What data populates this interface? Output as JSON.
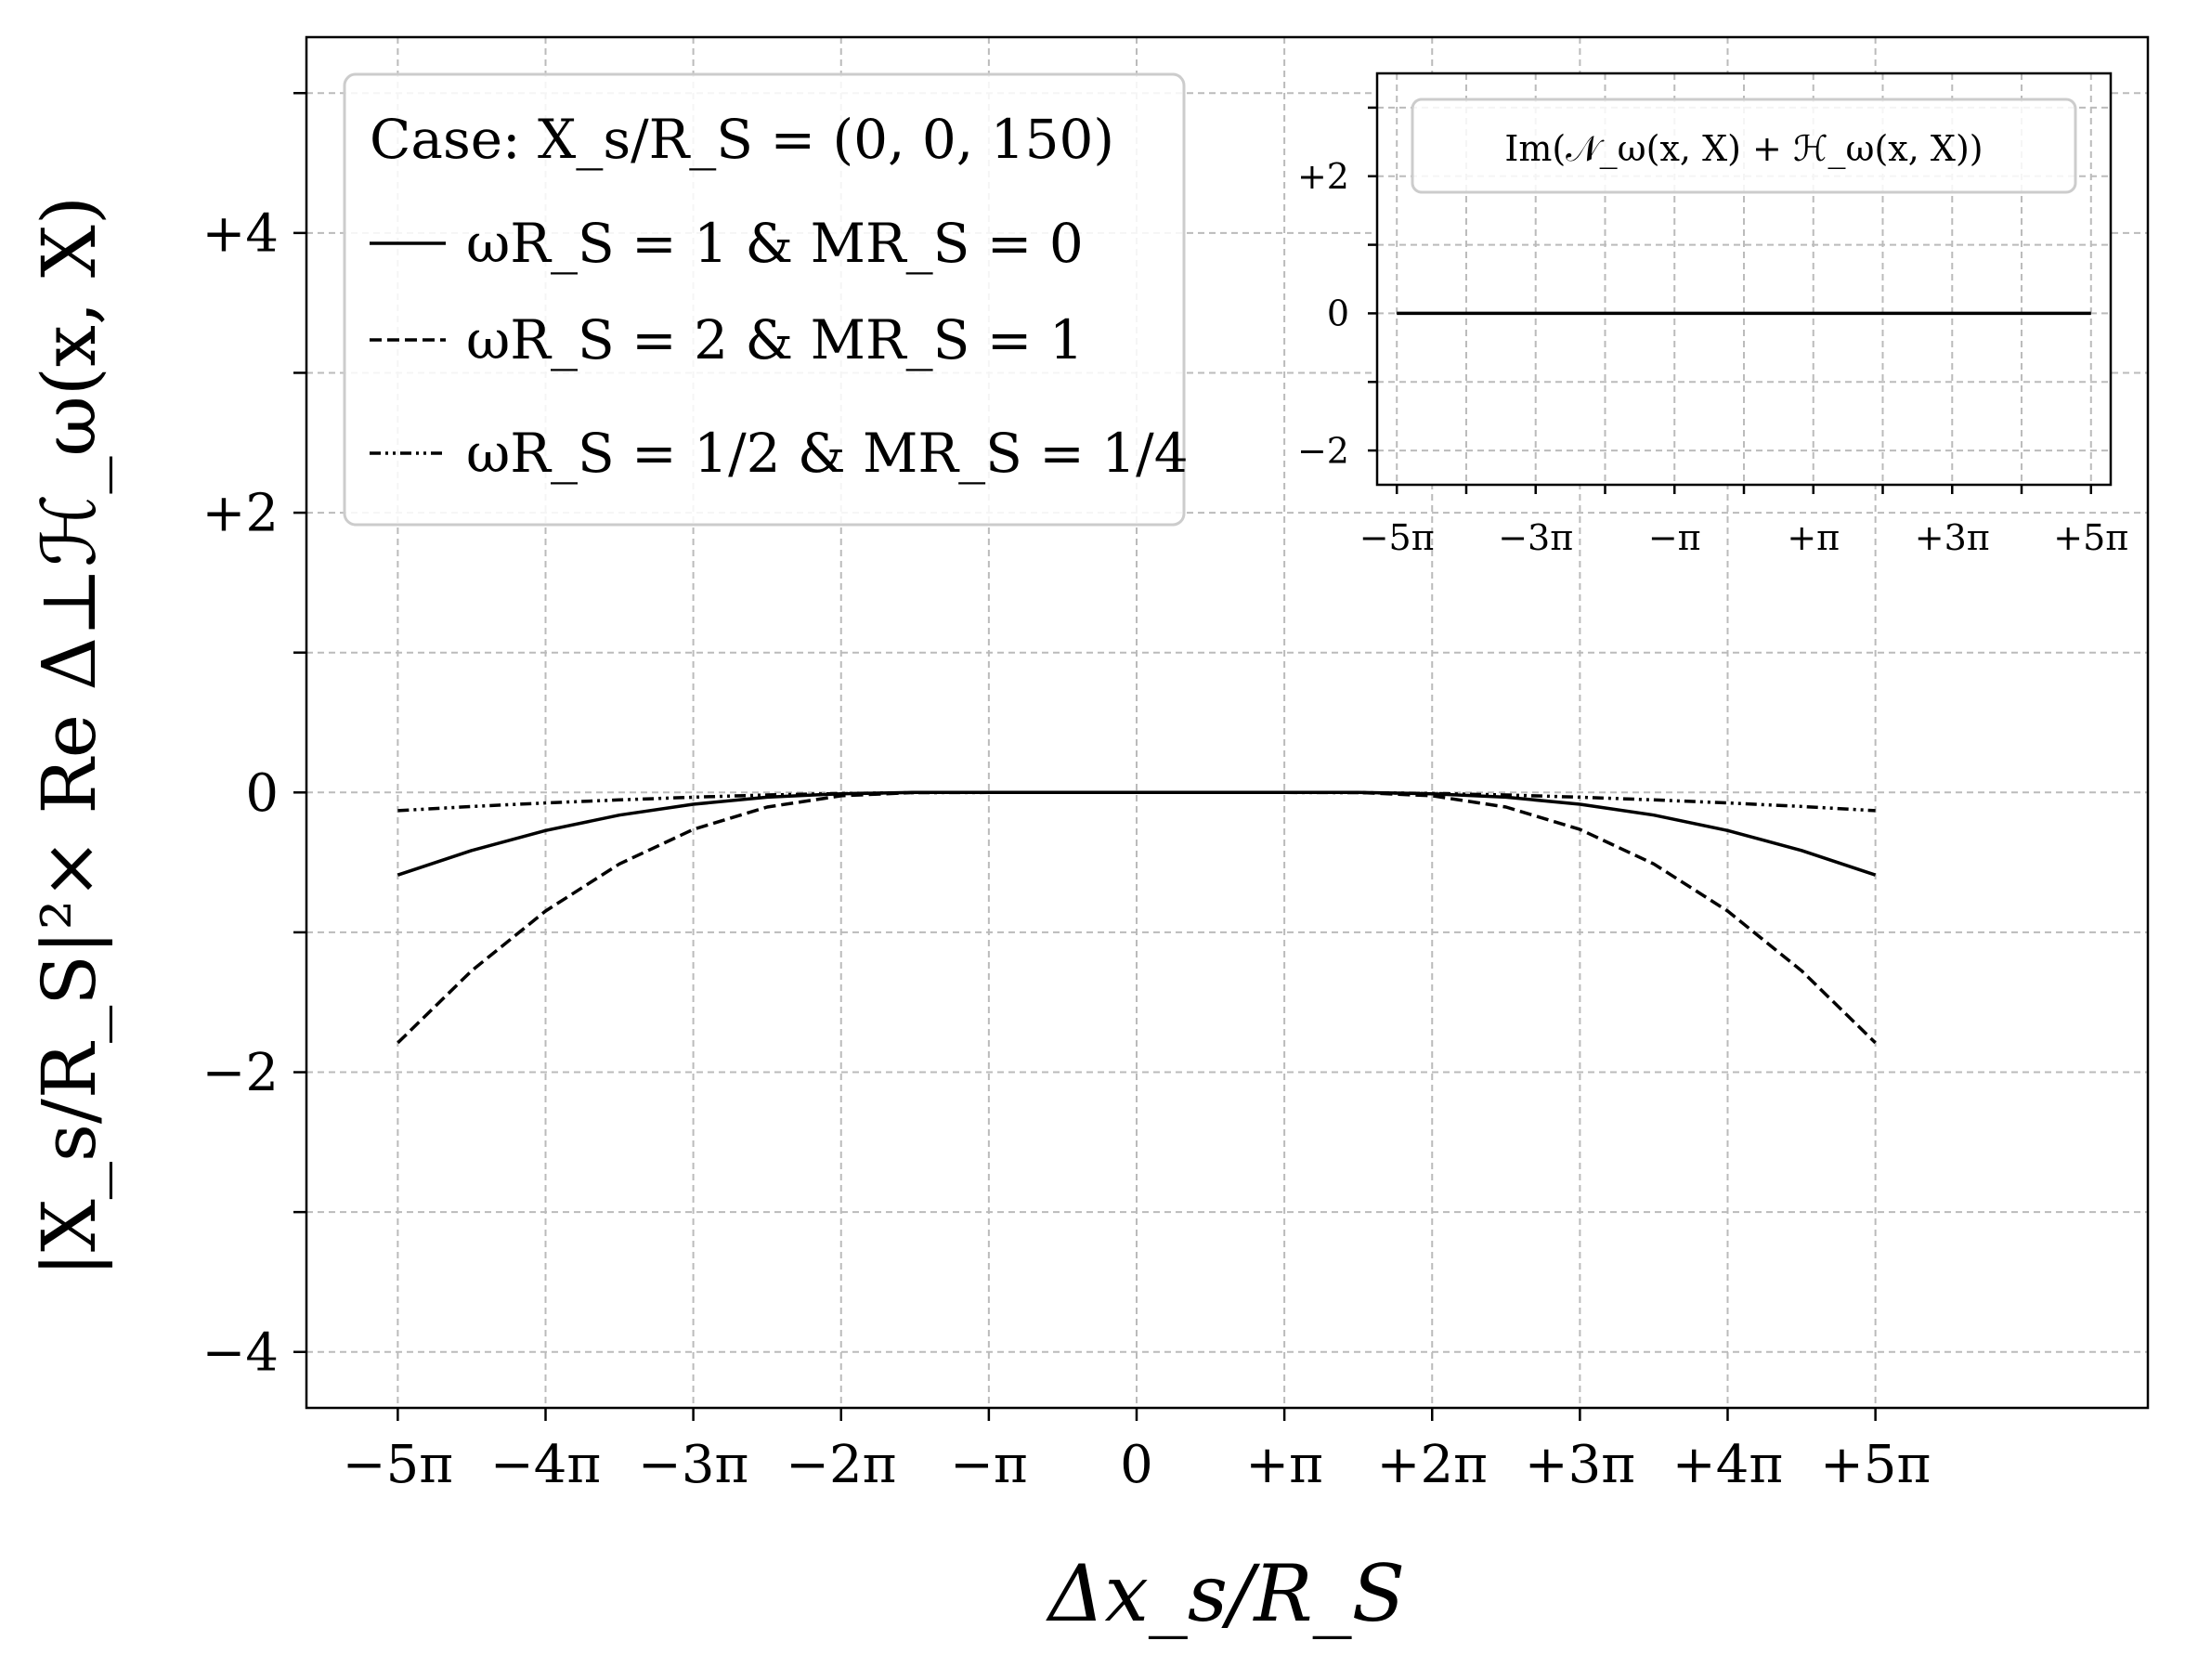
{
  "chart_data": [
    {
      "type": "line",
      "xlabel": "Δx_s/R_S",
      "ylabel": "|X_s/R_S|²× Re Δ⊥ℋ_ω(x, X)",
      "x_ticks": [
        {
          "value": -15.708,
          "label": "−5π"
        },
        {
          "value": -12.566,
          "label": "−4π"
        },
        {
          "value": -9.425,
          "label": "−3π"
        },
        {
          "value": -6.283,
          "label": "−2π"
        },
        {
          "value": -3.1416,
          "label": "−π"
        },
        {
          "value": 0,
          "label": "0"
        },
        {
          "value": 3.1416,
          "label": "+π"
        },
        {
          "value": 6.283,
          "label": "+2π"
        },
        {
          "value": 9.425,
          "label": "+3π"
        },
        {
          "value": 12.566,
          "label": "+4π"
        },
        {
          "value": 15.708,
          "label": "+5π"
        }
      ],
      "y_ticks": [
        {
          "value": 4,
          "label": "+4"
        },
        {
          "value": 2,
          "label": "+2"
        },
        {
          "value": 0,
          "label": "0"
        },
        {
          "value": -2,
          "label": "−2"
        },
        {
          "value": -4,
          "label": "−4"
        }
      ],
      "y_minor_ticks": [
        -3,
        -1,
        1,
        3,
        5
      ],
      "xlim": [
        -17.65,
        21.5
      ],
      "ylim": [
        -4.4,
        5.4
      ],
      "grid": true,
      "legend_title": "Case: X_s/R_S = (0, 0, 150)",
      "legend_position": "top-left",
      "series": [
        {
          "name": "ωR_S = 1 & MR_S = 0",
          "style": "solid",
          "x": [
            -15.708,
            -14.137,
            -12.566,
            -10.996,
            -9.425,
            -7.854,
            -6.283,
            -4.712,
            -3.142,
            -1.571,
            0,
            1.571,
            3.142,
            4.712,
            6.283,
            7.854,
            9.425,
            10.996,
            12.566,
            14.137,
            15.708
          ],
          "y": [
            -0.59,
            -0.415,
            -0.272,
            -0.162,
            -0.084,
            -0.034,
            -0.009,
            0,
            0,
            0,
            0,
            0,
            0,
            0,
            -0.009,
            -0.034,
            -0.084,
            -0.162,
            -0.272,
            -0.415,
            -0.59
          ]
        },
        {
          "name": "ωR_S = 2 & MR_S = 1",
          "style": "dashed",
          "x": [
            -15.708,
            -14.137,
            -12.566,
            -10.996,
            -9.425,
            -7.854,
            -6.283,
            -4.712,
            -3.142,
            -1.571,
            0,
            1.571,
            3.142,
            4.712,
            6.283,
            7.854,
            9.425,
            10.996,
            12.566,
            14.137,
            15.708
          ],
          "y": [
            -1.79,
            -1.275,
            -0.848,
            -0.511,
            -0.264,
            -0.104,
            -0.024,
            0,
            0,
            0,
            0,
            0,
            0,
            0,
            -0.024,
            -0.104,
            -0.264,
            -0.511,
            -0.848,
            -1.275,
            -1.79
          ]
        },
        {
          "name": "ωR_S = 1/2 & MR_S = 1/4",
          "style": "dash-dot-dot",
          "x": [
            -15.708,
            -14.137,
            -12.566,
            -10.996,
            -9.425,
            -7.854,
            -6.283,
            -4.712,
            -3.142,
            -1.571,
            0,
            1.571,
            3.142,
            4.712,
            6.283,
            7.854,
            9.425,
            10.996,
            12.566,
            14.137,
            15.708
          ],
          "y": [
            -0.13,
            -0.1,
            -0.075,
            -0.053,
            -0.034,
            -0.018,
            -0.007,
            -0.001,
            0,
            0,
            0,
            0,
            0,
            -0.001,
            -0.007,
            -0.018,
            -0.034,
            -0.053,
            -0.075,
            -0.1,
            -0.13
          ]
        }
      ]
    },
    {
      "type": "line",
      "legend_title": "Im(𝒩_ω(x, X) + ℋ_ω(x, X))",
      "legend_position": "top-center",
      "x_ticks": [
        {
          "value": -15.708,
          "label": "−5π"
        },
        {
          "value": -9.425,
          "label": "−3π"
        },
        {
          "value": -3.1416,
          "label": "−π"
        },
        {
          "value": 3.1416,
          "label": "+π"
        },
        {
          "value": 9.425,
          "label": "+3π"
        },
        {
          "value": 15.708,
          "label": "+5π"
        }
      ],
      "x_minor_ticks": [
        -12.566,
        -6.283,
        0,
        6.283,
        12.566
      ],
      "y_ticks": [
        {
          "value": 2,
          "label": "+2"
        },
        {
          "value": 0,
          "label": "0"
        },
        {
          "value": -2,
          "label": "−2"
        }
      ],
      "y_minor_ticks": [
        -1,
        1,
        3
      ],
      "xlim": [
        -16.6,
        16.6
      ],
      "ylim": [
        -2.5,
        3.5
      ],
      "grid": true,
      "series": [
        {
          "style": "solid",
          "x": [
            -15.708,
            15.708
          ],
          "y": [
            0,
            0
          ]
        }
      ]
    }
  ]
}
